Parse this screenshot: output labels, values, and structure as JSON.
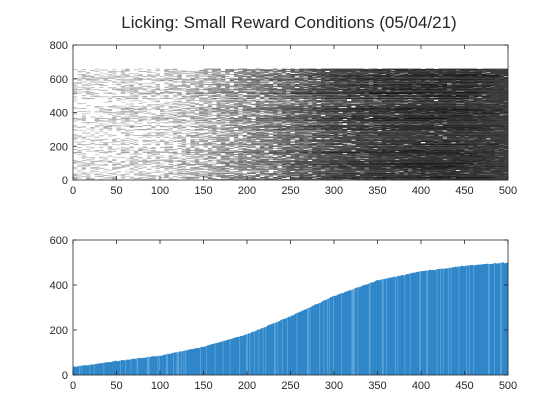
{
  "chart_data": [
    {
      "type": "heatmap",
      "title": "Licking: Small Reward Conditions (05/04/21)",
      "xlim": [
        0,
        500
      ],
      "ylim": [
        0,
        800
      ],
      "xticks": [
        0,
        50,
        100,
        150,
        200,
        250,
        300,
        350,
        400,
        450,
        500
      ],
      "yticks": [
        0,
        200,
        400,
        600,
        800
      ],
      "rows": 660,
      "colormap": "gray-reversed",
      "density_profile": [
        {
          "x": 0,
          "density": 0.15
        },
        {
          "x": 100,
          "density": 0.2
        },
        {
          "x": 200,
          "density": 0.45
        },
        {
          "x": 300,
          "density": 0.7
        },
        {
          "x": 400,
          "density": 0.8
        },
        {
          "x": 500,
          "density": 0.85
        }
      ]
    },
    {
      "type": "bar",
      "xlim": [
        0,
        500
      ],
      "ylim": [
        0,
        600
      ],
      "xticks": [
        0,
        50,
        100,
        150,
        200,
        250,
        300,
        350,
        400,
        450,
        500
      ],
      "yticks": [
        0,
        200,
        400,
        600
      ],
      "color": "#2E86C8",
      "cumulative_points": [
        {
          "x": 0,
          "y": 35
        },
        {
          "x": 50,
          "y": 62
        },
        {
          "x": 100,
          "y": 85
        },
        {
          "x": 150,
          "y": 125
        },
        {
          "x": 200,
          "y": 180
        },
        {
          "x": 250,
          "y": 260
        },
        {
          "x": 300,
          "y": 350
        },
        {
          "x": 350,
          "y": 420
        },
        {
          "x": 400,
          "y": 460
        },
        {
          "x": 450,
          "y": 485
        },
        {
          "x": 500,
          "y": 500
        }
      ]
    }
  ]
}
